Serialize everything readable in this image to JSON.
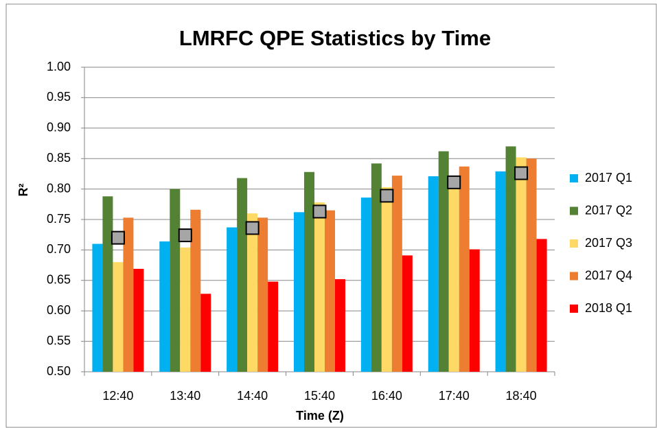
{
  "chart_data": {
    "type": "bar",
    "title": "LMRFC QPE Statistics by Time",
    "x_label": "Time (Z)",
    "y_label": "R²",
    "categories": [
      "12:40",
      "13:40",
      "14:40",
      "15:40",
      "16:40",
      "17:40",
      "18:40"
    ],
    "series": [
      {
        "name": "2017 Q1",
        "color": "#00b0f0",
        "values": [
          0.71,
          0.714,
          0.737,
          0.762,
          0.786,
          0.821,
          0.829
        ]
      },
      {
        "name": "2017 Q2",
        "color": "#548235",
        "values": [
          0.788,
          0.8,
          0.818,
          0.828,
          0.842,
          0.862,
          0.87
        ]
      },
      {
        "name": "2017 Q3",
        "color": "#ffd966",
        "values": [
          0.68,
          0.704,
          0.76,
          0.778,
          0.803,
          0.812,
          0.852
        ]
      },
      {
        "name": "2017 Q4",
        "color": "#ed7d31",
        "values": [
          0.753,
          0.766,
          0.753,
          0.765,
          0.822,
          0.837,
          0.85
        ]
      },
      {
        "name": "2018 Q1",
        "color": "#ff0000",
        "values": [
          0.669,
          0.628,
          0.648,
          0.652,
          0.691,
          0.701,
          0.718
        ]
      }
    ],
    "markers": {
      "color": "#a6a6a6",
      "values": [
        0.72,
        0.724,
        0.736,
        0.763,
        0.789,
        0.811,
        0.826
      ]
    },
    "ylim": [
      0.5,
      1.0
    ],
    "yticks": [
      {
        "value": 0.5,
        "label": "0.50"
      },
      {
        "value": 0.55,
        "label": "0.55"
      },
      {
        "value": 0.6,
        "label": "0.60"
      },
      {
        "value": 0.65,
        "label": "0.65"
      },
      {
        "value": 0.7,
        "label": "0.70"
      },
      {
        "value": 0.75,
        "label": "0.75"
      },
      {
        "value": 0.8,
        "label": "0.80"
      },
      {
        "value": 0.85,
        "label": "0.85"
      },
      {
        "value": 0.9,
        "label": "0.90"
      },
      {
        "value": 0.95,
        "label": "0.95"
      },
      {
        "value": 1.0,
        "label": "1.00"
      }
    ],
    "grid": true,
    "legend": "right"
  }
}
